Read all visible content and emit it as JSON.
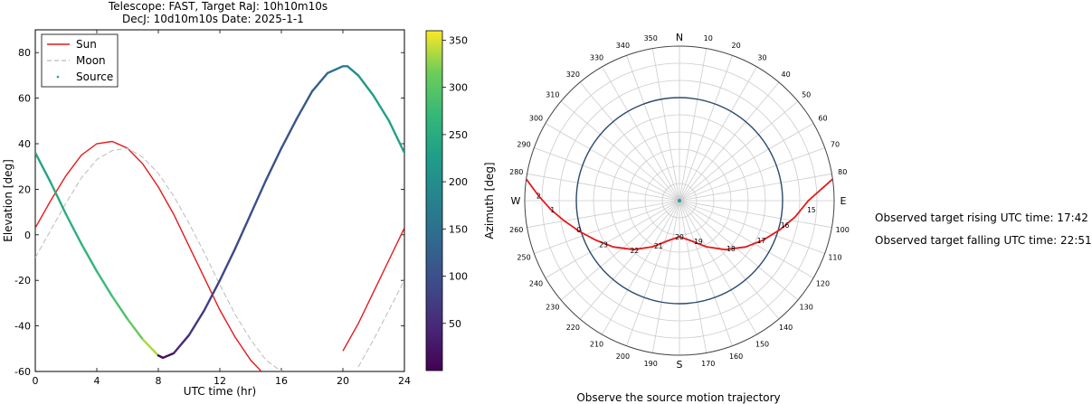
{
  "chart_data": [
    {
      "type": "line",
      "title_lines": [
        "Telescope: FAST, Target RaJ: 10h10m10s",
        "DecJ: 10d10m10s Date: 2025-1-1"
      ],
      "xlabel": "UTC time (hr)",
      "ylabel": "Elevation [deg]",
      "xlim": [
        0,
        24
      ],
      "ylim": [
        -60,
        90
      ],
      "xticks": [
        0,
        4,
        8,
        12,
        16,
        20,
        24
      ],
      "yticks": [
        -60,
        -40,
        -20,
        0,
        20,
        40,
        60,
        80
      ],
      "legend": [
        "Sun",
        "Moon",
        "Source"
      ],
      "legend_loc": "upper-left",
      "series": [
        {
          "name": "Sun",
          "color": "#e41a1c",
          "style": "solid",
          "x": [
            0,
            1,
            2,
            3,
            4,
            5,
            6,
            7,
            8,
            9,
            10,
            11,
            12,
            13,
            14,
            14.7,
            19.3,
            20,
            21,
            22,
            23,
            24
          ],
          "y": [
            3,
            15,
            26,
            35,
            40,
            41,
            38,
            31,
            21,
            9,
            -5,
            -19,
            -33,
            -45,
            -55,
            -60,
            -60,
            -51,
            -39,
            -25,
            -11,
            3
          ]
        },
        {
          "name": "Moon",
          "color": "#bbbbbb",
          "style": "dashed",
          "x": [
            0,
            1,
            2,
            3,
            4,
            5,
            6,
            7,
            8,
            9,
            10,
            11,
            12,
            13,
            14,
            15,
            16,
            16.2,
            20.8,
            21,
            22,
            23,
            24
          ],
          "y": [
            -10,
            2,
            14,
            25,
            33,
            37,
            38,
            34,
            27,
            17,
            5,
            -8,
            -22,
            -35,
            -46,
            -55,
            -60,
            -60,
            -60,
            -58,
            -46,
            -33,
            -20
          ]
        },
        {
          "name": "Source",
          "color_by": "azimuth",
          "x": [
            0,
            1,
            2,
            3,
            4,
            5,
            6,
            7,
            8,
            8.3,
            9,
            10,
            11,
            12,
            13,
            14,
            15,
            16,
            17,
            18,
            19,
            20,
            20.3,
            21,
            22,
            23,
            24
          ],
          "y": [
            36,
            23,
            9,
            -4,
            -16,
            -27,
            -37,
            -46,
            -53,
            -54,
            -52,
            -44,
            -33,
            -20,
            -6,
            9,
            24,
            38,
            51,
            63,
            71,
            74,
            74,
            70,
            61,
            50,
            36
          ],
          "azimuth": [
            233,
            243,
            252,
            261,
            270,
            280,
            295,
            318,
            350,
            5,
            35,
            58,
            73,
            84,
            91,
            96,
            100,
            103,
            108,
            116,
            140,
            175,
            180,
            206,
            226,
            235,
            233
          ]
        }
      ],
      "colorbar": {
        "label": "Azimuth [deg]",
        "range": [
          0,
          360
        ],
        "ticks": [
          50,
          100,
          150,
          200,
          250,
          300,
          350
        ]
      }
    },
    {
      "type": "polar",
      "title": "Observe the source motion trajectory",
      "cardinals": {
        "N": "N",
        "E": "E",
        "S": "S",
        "W": "W"
      },
      "az_labels": [
        "10",
        "20",
        "30",
        "40",
        "50",
        "60",
        "70",
        "80",
        "100",
        "110",
        "120",
        "130",
        "140",
        "150",
        "160",
        "170",
        "190",
        "200",
        "210",
        "220",
        "230",
        "240",
        "250",
        "260",
        "280",
        "290",
        "300",
        "310",
        "320",
        "330",
        "340",
        "350"
      ],
      "zenith_circle_elevation": 30,
      "track": {
        "color": "#e41a1c",
        "az": [
          278,
          272,
          266,
          260,
          253,
          245,
          235,
          223,
          210,
          195,
          180,
          165,
          150,
          137,
          125,
          115,
          106,
          98,
          90,
          82
        ],
        "elev": [
          0,
          8,
          15,
          22,
          29,
          36,
          43,
          51,
          59,
          66,
          69,
          66,
          59,
          51,
          43,
          36,
          29,
          22,
          15,
          0
        ],
        "hour_labels": [
          {
            "text": "2",
            "az": 272,
            "elev": 8
          },
          {
            "text": "1",
            "az": 266,
            "elev": 16
          },
          {
            "text": "0",
            "az": 254,
            "elev": 29
          },
          {
            "text": "23",
            "az": 240,
            "elev": 39
          },
          {
            "text": "22",
            "az": 222,
            "elev": 51
          },
          {
            "text": "21",
            "az": 205,
            "elev": 61
          },
          {
            "text": "20",
            "az": 180,
            "elev": 69
          },
          {
            "text": "19",
            "az": 155,
            "elev": 64
          },
          {
            "text": "18",
            "az": 133,
            "elev": 49
          },
          {
            "text": "17",
            "az": 116,
            "elev": 37
          },
          {
            "text": "16",
            "az": 103,
            "elev": 27
          },
          {
            "text": "15",
            "az": 94,
            "elev": 13
          }
        ]
      },
      "source_marker_color": "#2a9ab0"
    }
  ],
  "info": {
    "rising": "Observed target rising UTC time: 17:42",
    "falling": "Observed target falling UTC time: 22:51"
  }
}
